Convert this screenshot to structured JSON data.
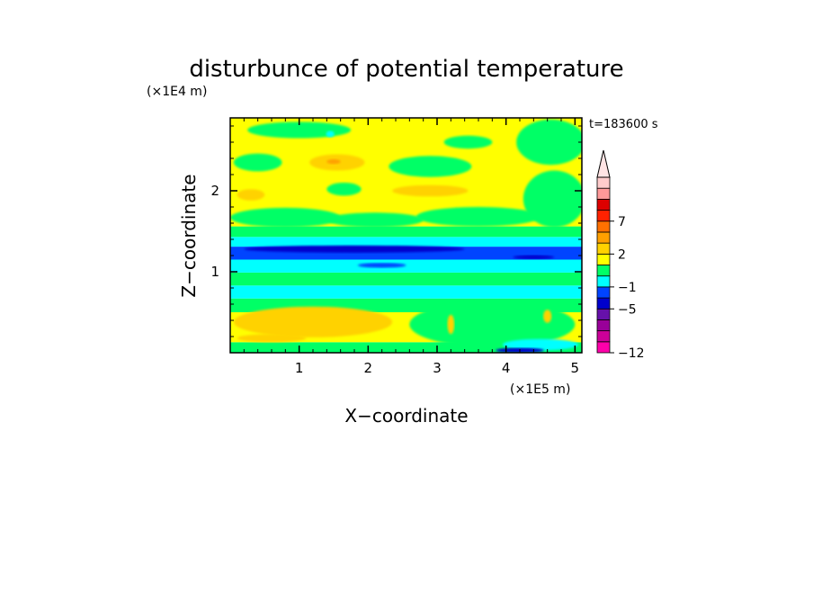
{
  "chart_data": {
    "type": "heatmap",
    "title": "disturbunce of potential temperature",
    "xlabel": "X−coordinate",
    "ylabel": "Z−coordinate",
    "x_unit": "(×1E5 m)",
    "y_unit": "(×1E4 m)",
    "time_label": "t=183600 s",
    "xlim": [
      0,
      5.1
    ],
    "ylim": [
      0,
      2.9
    ],
    "xticks": [
      "1",
      "2",
      "3",
      "4",
      "5"
    ],
    "yticks": [
      "1",
      "2"
    ],
    "colorbar_labels": [
      {
        "label": "7",
        "value": 7
      },
      {
        "label": "2",
        "value": 2
      },
      {
        "label": "−1",
        "value": -1
      },
      {
        "label": "−5",
        "value": -5
      },
      {
        "label": "−12",
        "value": -12
      }
    ],
    "colorbar_colors": [
      "#ff00aa",
      "#cc0099",
      "#990099",
      "#6611aa",
      "#0000cc",
      "#0044ff",
      "#00ffff",
      "#00ff66",
      "#ffff00",
      "#ffd200",
      "#ffa000",
      "#ff7000",
      "#ff2200",
      "#dd0000",
      "#ff9999",
      "#ffcccc"
    ],
    "bands": [
      {
        "z0": 0.0,
        "z1": 0.13,
        "color": "#00ff66"
      },
      {
        "z0": 0.13,
        "z1": 0.5,
        "color": "#ffff00"
      },
      {
        "z0": 0.5,
        "z1": 0.67,
        "color": "#00ff66"
      },
      {
        "z0": 0.67,
        "z1": 0.83,
        "color": "#00ffff"
      },
      {
        "z0": 0.83,
        "z1": 0.99,
        "color": "#00ff66"
      },
      {
        "z0": 0.99,
        "z1": 1.15,
        "color": "#00ffff"
      },
      {
        "z0": 1.15,
        "z1": 1.31,
        "color": "#0044ff"
      },
      {
        "z0": 1.31,
        "z1": 1.43,
        "color": "#00ffff"
      },
      {
        "z0": 1.43,
        "z1": 1.56,
        "color": "#00ff66"
      },
      {
        "z0": 1.56,
        "z1": 2.9,
        "color": "#ffff00"
      }
    ],
    "features": [
      {
        "x": 1.2,
        "z": 0.38,
        "rx": 1.15,
        "rz": 0.19,
        "color": "#ffd200"
      },
      {
        "x": 0.6,
        "z": 0.18,
        "rx": 0.5,
        "rz": 0.05,
        "color": "#ffd200"
      },
      {
        "x": 1.5,
        "z": 0.93,
        "rx": 1.4,
        "rz": 0.035,
        "color": "#00ff66"
      },
      {
        "x": 1.8,
        "z": 1.28,
        "rx": 1.6,
        "rz": 0.045,
        "color": "#0000cc"
      },
      {
        "x": 4.4,
        "z": 1.18,
        "rx": 0.3,
        "rz": 0.025,
        "color": "#0000cc"
      },
      {
        "x": 2.2,
        "z": 1.08,
        "rx": 0.35,
        "rz": 0.03,
        "color": "#0044ff"
      },
      {
        "x": 0.8,
        "z": 1.67,
        "rx": 0.8,
        "rz": 0.12,
        "color": "#00ff66"
      },
      {
        "x": 2.1,
        "z": 1.64,
        "rx": 0.7,
        "rz": 0.09,
        "color": "#00ff66"
      },
      {
        "x": 3.6,
        "z": 1.68,
        "rx": 0.9,
        "rz": 0.12,
        "color": "#00ff66"
      },
      {
        "x": 4.7,
        "z": 1.9,
        "rx": 0.45,
        "rz": 0.35,
        "color": "#00ff66"
      },
      {
        "x": 2.9,
        "z": 2.0,
        "rx": 0.55,
        "rz": 0.07,
        "color": "#ffd200"
      },
      {
        "x": 0.3,
        "z": 1.95,
        "rx": 0.2,
        "rz": 0.07,
        "color": "#ffd200"
      },
      {
        "x": 1.65,
        "z": 2.02,
        "rx": 0.25,
        "rz": 0.08,
        "color": "#00ff66"
      },
      {
        "x": 0.4,
        "z": 2.35,
        "rx": 0.35,
        "rz": 0.11,
        "color": "#00ff66"
      },
      {
        "x": 1.55,
        "z": 2.35,
        "rx": 0.4,
        "rz": 0.1,
        "color": "#ffd200"
      },
      {
        "x": 1.5,
        "z": 2.36,
        "rx": 0.1,
        "rz": 0.03,
        "color": "#ffa000"
      },
      {
        "x": 2.9,
        "z": 2.3,
        "rx": 0.6,
        "rz": 0.13,
        "color": "#00ff66"
      },
      {
        "x": 3.45,
        "z": 2.6,
        "rx": 0.35,
        "rz": 0.08,
        "color": "#00ff66"
      },
      {
        "x": 4.65,
        "z": 2.6,
        "rx": 0.5,
        "rz": 0.28,
        "color": "#00ff66"
      },
      {
        "x": 1.0,
        "z": 2.75,
        "rx": 0.75,
        "rz": 0.1,
        "color": "#00ff66"
      },
      {
        "x": 1.45,
        "z": 2.7,
        "rx": 0.06,
        "rz": 0.04,
        "color": "#00ffff"
      },
      {
        "x": 3.8,
        "z": 0.35,
        "rx": 1.2,
        "rz": 0.28,
        "color": "#00ff66"
      },
      {
        "x": 4.5,
        "z": 0.1,
        "rx": 0.55,
        "rz": 0.07,
        "color": "#00ffff"
      },
      {
        "x": 4.2,
        "z": 0.03,
        "rx": 0.35,
        "rz": 0.03,
        "color": "#0000cc"
      },
      {
        "x": 3.2,
        "z": 0.35,
        "rx": 0.05,
        "rz": 0.12,
        "color": "#ffd200"
      },
      {
        "x": 4.6,
        "z": 0.45,
        "rx": 0.06,
        "rz": 0.08,
        "color": "#ffd200"
      }
    ]
  }
}
